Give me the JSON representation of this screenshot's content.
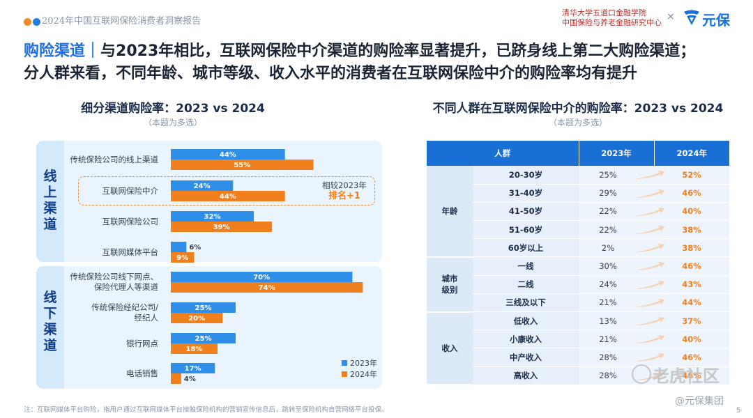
{
  "header": {
    "report_title": "2024年中国互联网保险消费者洞察报告",
    "institution_line1": "清华大学五道口金融学院",
    "institution_line2": "中国保险与养老金融研究中心",
    "separator": "×",
    "brand": "元保",
    "dot_colors": [
      "#f08a2e",
      "#1f7fe0"
    ]
  },
  "headline": {
    "section": "购险渠道",
    "divider": "｜",
    "line1": "与2023年相比，互联网保险中介渠道的购险率显著提升，已跻身线上第二大购险渠道；",
    "line2": "分人群来看，不同年龄、城市等级、收入水平的消费者在互联网保险中介的购险率均有提升"
  },
  "left_panel": {
    "title": "细分渠道购险率：2023 vs 2024",
    "note": "（本题为多选）",
    "group_online": "线上渠道",
    "group_offline": "线下渠道",
    "comparison_line1": "相较2023年",
    "comparison_line2": "排名+1"
  },
  "right_panel": {
    "title": "不同人群在互联网保险中介的购险率：2023 vs 2024",
    "note": "（本题为多选）",
    "col_group": "人群",
    "col_2023": "2023年",
    "col_2024": "2024年",
    "groups": [
      {
        "name": "年龄",
        "rows": [
          {
            "label": "20-30岁",
            "v2023": "25%",
            "v2024": "52%"
          },
          {
            "label": "31-40岁",
            "v2023": "29%",
            "v2024": "46%"
          },
          {
            "label": "41-50岁",
            "v2023": "22%",
            "v2024": "40%"
          },
          {
            "label": "51-60岁",
            "v2023": "22%",
            "v2024": "38%"
          },
          {
            "label": "60岁以上",
            "v2023": "2%",
            "v2024": "38%"
          }
        ]
      },
      {
        "name": "城市级别",
        "rows": [
          {
            "label": "一线",
            "v2023": "30%",
            "v2024": "46%"
          },
          {
            "label": "二线",
            "v2023": "24%",
            "v2024": "43%"
          },
          {
            "label": "三线及以下",
            "v2023": "21%",
            "v2024": "44%"
          }
        ]
      },
      {
        "name": "收入",
        "rows": [
          {
            "label": "低收入",
            "v2023": "13%",
            "v2024": "37%"
          },
          {
            "label": "小康收入",
            "v2023": "21%",
            "v2024": "40%"
          },
          {
            "label": "中产收入",
            "v2023": "28%",
            "v2024": "46%"
          },
          {
            "label": "高收入",
            "v2023": "28%",
            "v2024": "46%"
          }
        ]
      }
    ]
  },
  "chart_data": {
    "type": "bar",
    "orientation": "horizontal",
    "title": "细分渠道购险率：2023 vs 2024",
    "categories": [
      "传统保险公司的线上渠道",
      "互联网保险中介",
      "互联网保险公司",
      "互联网媒体平台",
      "传统保险公司线下网点、保险代理人等渠道",
      "传统保险经纪公司/经纪人",
      "银行网点",
      "电话销售"
    ],
    "series": [
      {
        "name": "2023年",
        "color": "#2f8fe8",
        "values": [
          44,
          24,
          32,
          6,
          70,
          25,
          25,
          17
        ]
      },
      {
        "name": "2024年",
        "color": "#f07f1e",
        "values": [
          55,
          44,
          39,
          9,
          74,
          20,
          18,
          4
        ]
      }
    ],
    "unit": "%",
    "xlim": [
      0,
      100
    ],
    "grid": false,
    "legend_position": "bottom-right"
  },
  "footnote": "注：互联网媒体平台购险，指用户通过互联网媒体平台接触保险机构的营销宣传信息后，跳转至保险机构自营网络平台投保。",
  "watermark": "老虎社区",
  "watermark2": "@元保集团",
  "page_number": "5"
}
